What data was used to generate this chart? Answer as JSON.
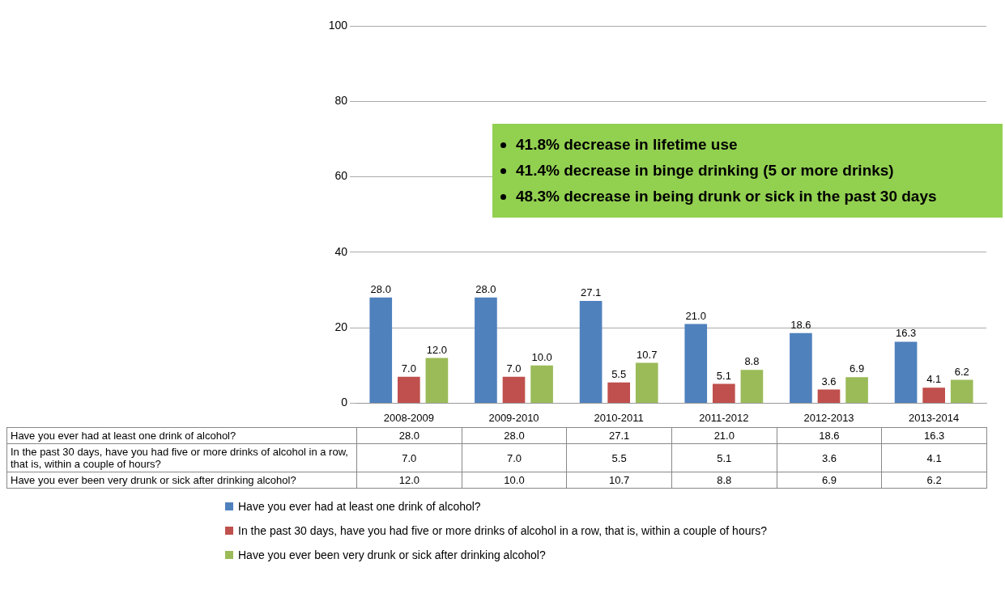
{
  "chart_data": {
    "type": "bar",
    "categories": [
      "2008-2009",
      "2009-2010",
      "2010-2011",
      "2011-2012",
      "2012-2013",
      "2013-2014"
    ],
    "series": [
      {
        "name": "Have you ever had at least one drink of alcohol?",
        "color": "#4f81bd",
        "values": [
          28.0,
          28.0,
          27.1,
          21.0,
          18.6,
          16.3
        ],
        "value_labels": [
          "28.0",
          "28.0",
          "27.1",
          "21.0",
          "18.6",
          "16.3"
        ]
      },
      {
        "name": "In the past 30 days, have you had five or more drinks of alcohol in a row, that is, within a couple of hours?",
        "color": "#c0504d",
        "values": [
          7.0,
          7.0,
          5.5,
          5.1,
          3.6,
          4.1
        ],
        "value_labels": [
          "7.0",
          "7.0",
          "5.5",
          "5.1",
          "3.6",
          "4.1"
        ]
      },
      {
        "name": "Have you ever been very drunk or sick after drinking alcohol?",
        "color": "#9bbb59",
        "values": [
          12.0,
          10.0,
          10.7,
          8.8,
          6.9,
          6.2
        ],
        "value_labels": [
          "12.0",
          "10.0",
          "10.7",
          "8.8",
          "6.9",
          "6.2"
        ]
      }
    ],
    "ylim": [
      0,
      100
    ],
    "yticks": [
      0,
      20,
      40,
      60,
      80,
      100
    ],
    "grid": "y",
    "legend": "bottom",
    "annotations": [
      "41.8% decrease in lifetime use",
      "41.4% decrease in binge drinking (5 or more drinks)",
      "48.3% decrease in being drunk or sick in the past 30 days"
    ]
  }
}
